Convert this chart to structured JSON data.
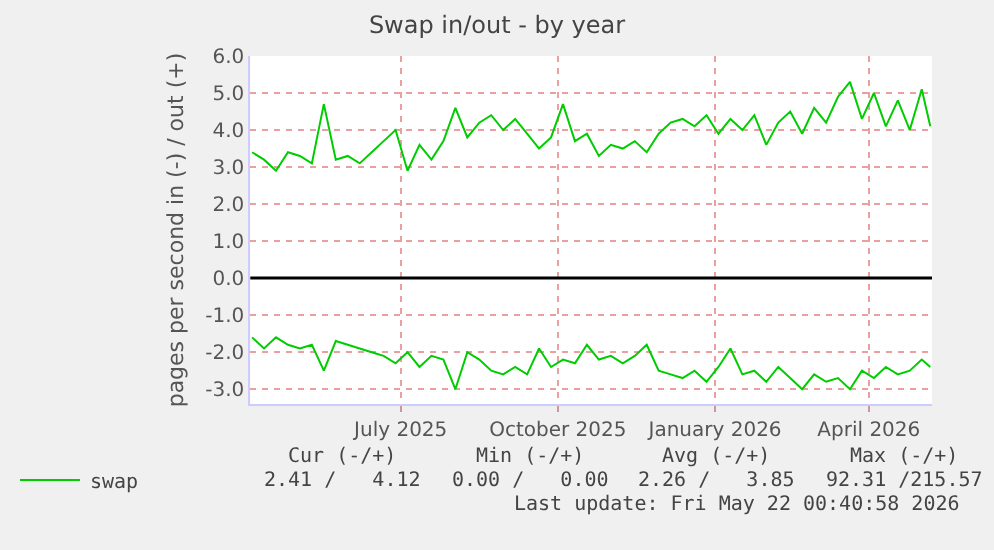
{
  "chart_data": {
    "type": "line",
    "title": "Swap in/out - by year",
    "ylabel": "pages per second in (-) / out (+)",
    "x": [
      "2025-04-19",
      "2025-04-26",
      "2025-05-03",
      "2025-05-10",
      "2025-05-17",
      "2025-05-24",
      "2025-05-31",
      "2025-06-07",
      "2025-06-14",
      "2025-06-21",
      "2025-06-28",
      "2025-07-05",
      "2025-07-12",
      "2025-07-19",
      "2025-07-26",
      "2025-08-02",
      "2025-08-09",
      "2025-08-16",
      "2025-08-23",
      "2025-08-30",
      "2025-09-06",
      "2025-09-13",
      "2025-09-20",
      "2025-09-27",
      "2025-10-04",
      "2025-10-11",
      "2025-10-18",
      "2025-10-25",
      "2025-11-01",
      "2025-11-08",
      "2025-11-15",
      "2025-11-22",
      "2025-11-29",
      "2025-12-06",
      "2025-12-13",
      "2025-12-20",
      "2025-12-27",
      "2026-01-03",
      "2026-01-10",
      "2026-01-17",
      "2026-01-24",
      "2026-01-31",
      "2026-02-07",
      "2026-02-14",
      "2026-02-21",
      "2026-02-28",
      "2026-03-07",
      "2026-03-14",
      "2026-03-21",
      "2026-03-28",
      "2026-04-04",
      "2026-04-11",
      "2026-04-18",
      "2026-04-25",
      "2026-05-02",
      "2026-05-09",
      "2026-05-16",
      "2026-05-21"
    ],
    "series": [
      {
        "name": "swap",
        "color": "#00cc00",
        "values": [
          3.4,
          3.2,
          2.9,
          3.4,
          3.3,
          3.1,
          4.7,
          3.2,
          3.3,
          3.1,
          3.4,
          3.7,
          4.0,
          2.9,
          3.6,
          3.2,
          3.7,
          4.6,
          3.8,
          4.2,
          4.4,
          4.0,
          4.3,
          3.9,
          3.5,
          3.8,
          4.7,
          3.7,
          3.9,
          3.3,
          3.6,
          3.5,
          3.7,
          3.4,
          3.9,
          4.2,
          4.3,
          4.1,
          4.4,
          3.9,
          4.3,
          4.0,
          4.4,
          3.6,
          4.2,
          4.5,
          3.9,
          4.6,
          4.2,
          4.9,
          5.3,
          4.3,
          5.0,
          4.1,
          4.8,
          4.0,
          5.1,
          4.1
        ]
      },
      {
        "color": "#00cc00",
        "values": [
          -1.6,
          -1.9,
          -1.6,
          -1.8,
          -1.9,
          -1.8,
          -2.5,
          -1.7,
          -1.8,
          -1.9,
          -2.0,
          -2.1,
          -2.3,
          -2.0,
          -2.4,
          -2.1,
          -2.2,
          -3.0,
          -2.0,
          -2.2,
          -2.5,
          -2.6,
          -2.4,
          -2.6,
          -1.9,
          -2.4,
          -2.2,
          -2.3,
          -1.8,
          -2.2,
          -2.1,
          -2.3,
          -2.1,
          -1.8,
          -2.5,
          -2.6,
          -2.7,
          -2.5,
          -2.8,
          -2.4,
          -1.9,
          -2.6,
          -2.5,
          -2.8,
          -2.4,
          -2.7,
          -3.0,
          -2.6,
          -2.8,
          -2.7,
          -3.0,
          -2.5,
          -2.7,
          -2.4,
          -2.6,
          -2.5,
          -2.2,
          -2.4
        ]
      }
    ],
    "xlim": [
      "2025-04-18",
      "2026-05-22"
    ],
    "xticks": [
      {
        "value": "2025-07-15",
        "label": "July 2025"
      },
      {
        "value": "2025-10-15",
        "label": "October 2025"
      },
      {
        "value": "2026-01-15",
        "label": "January 2026"
      },
      {
        "value": "2026-04-15",
        "label": "April 2026"
      }
    ],
    "ylim": [
      -3.4,
      6.0
    ],
    "yticks": [
      {
        "value": -3,
        "label": "-3.0"
      },
      {
        "value": -2,
        "label": "-2.0"
      },
      {
        "value": -1,
        "label": "-1.0"
      },
      {
        "value": 0,
        "label": "0.0"
      },
      {
        "value": 1,
        "label": "1.0"
      },
      {
        "value": 2,
        "label": "2.0"
      },
      {
        "value": 3,
        "label": "3.0"
      },
      {
        "value": 4,
        "label": "4.0"
      },
      {
        "value": 5,
        "label": "5.0"
      },
      {
        "value": 6,
        "label": "6.0"
      }
    ],
    "ref_lines": [
      {
        "axis": "y",
        "value": 0,
        "color": "#000000"
      }
    ],
    "grid": true,
    "legend": "bottom left",
    "marker": "none",
    "line_style": "solid",
    "annotations": [
      "Cur (-/+)",
      "Min (-/+)",
      "Avg (-/+)",
      "Max (-/+)",
      "2.41 /   4.12",
      "0.00 /   0.00",
      "2.26 /   3.85",
      "92.31 /215.57",
      "Last update: Fri May 22 00:40:58 2026"
    ]
  }
}
